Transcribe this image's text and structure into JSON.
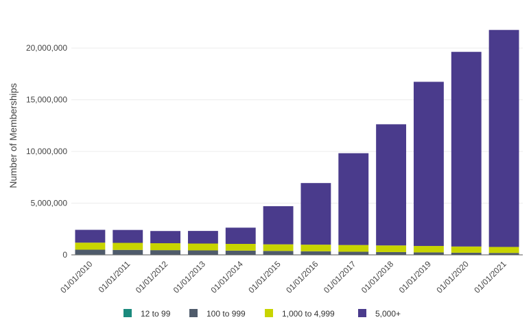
{
  "chart_data": {
    "type": "bar",
    "stacked": true,
    "title": "",
    "xlabel": "",
    "ylabel": "Number of Memberships",
    "ylim": [
      0,
      22000000
    ],
    "yticks": [
      0,
      5000000,
      10000000,
      15000000,
      20000000
    ],
    "ytick_labels": [
      "0",
      "5,000,000",
      "10,000,000",
      "15,000,000",
      "20,000,000"
    ],
    "grid": true,
    "legend_position": "bottom",
    "categories": [
      "01/01/2010",
      "01/01/2011",
      "01/01/2012",
      "01/01/2013",
      "01/01/2014",
      "01/01/2015",
      "01/01/2016",
      "01/01/2017",
      "01/01/2018",
      "01/01/2019",
      "01/01/2020",
      "01/01/2021"
    ],
    "series": [
      {
        "name": "12 to 99",
        "color": "#1b8a7d",
        "values": [
          40000,
          38000,
          35000,
          33000,
          30000,
          28000,
          25000,
          22000,
          20000,
          18000,
          16000,
          15000
        ]
      },
      {
        "name": "100 to 999",
        "color": "#4f5b6b",
        "values": [
          460000,
          440000,
          420000,
          400000,
          380000,
          350000,
          320000,
          280000,
          250000,
          220000,
          190000,
          170000
        ]
      },
      {
        "name": "1,000 to 4,999",
        "color": "#c8d400",
        "values": [
          680000,
          680000,
          670000,
          660000,
          650000,
          640000,
          640000,
          650000,
          640000,
          620000,
          600000,
          580000
        ]
      },
      {
        "name": "5,000+",
        "color": "#4a3b8c",
        "values": [
          1240000,
          1250000,
          1180000,
          1220000,
          1570000,
          3690000,
          5960000,
          8880000,
          11720000,
          15880000,
          18830000,
          20990000
        ]
      }
    ]
  }
}
